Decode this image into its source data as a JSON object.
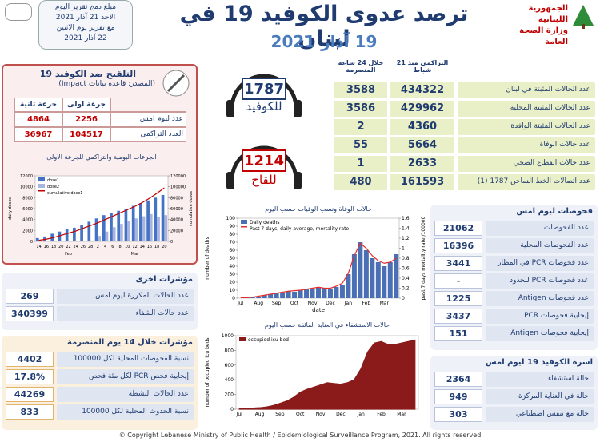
{
  "header": {
    "title": "ترصد عدوى الكوفيد 19 في لبنان",
    "date": "19 آذار 2021",
    "ministry": [
      "الجمهورية اللبنانية",
      "وزارة الصحة العامة"
    ],
    "note": [
      "مبلغ دمج تقرير اليوم",
      "الاحد 21 آذار 2021",
      "مع تقرير يوم الاثنين",
      "22 آذار 2021"
    ]
  },
  "main_table": {
    "headers": [
      "التراكمي منذ 21 شباط",
      "خلال 24 ساعة المنصرمة"
    ],
    "rows": [
      [
        "عدد الحالات المثبتة في لبنان",
        434322,
        3588
      ],
      [
        "عدد الحالات المثبتة المحلية",
        429962,
        3586
      ],
      [
        "عدد الحالات المثبتة الوافدة",
        4360,
        2
      ],
      [
        "عدد حالات الوفاة",
        5664,
        55
      ],
      [
        "عدد حالات القطاع الصحي",
        2633,
        1
      ],
      [
        "عدد اتصالات الخط الساخن 1787 (1)",
        161593,
        480
      ]
    ]
  },
  "hotlines": [
    {
      "number": 1787,
      "label": "للكوفيد"
    },
    {
      "number": 1214,
      "label": "للقاح"
    }
  ],
  "vaccination": {
    "title": "التلقيح ضد الكوفيد 19",
    "source": "(المصدر: قاعدة بيانات Impact)",
    "headers": [
      "جرعة اولى",
      "جرعة ثانية"
    ],
    "rows": [
      [
        "عدد ليوم امس",
        2256,
        4864
      ],
      [
        "العدد التراكمي",
        104517,
        36967
      ]
    ]
  },
  "other": {
    "title": "مؤشرات اخرى",
    "rows": [
      [
        "عدد الحالات المكررة ليوم امس",
        269
      ],
      [
        "عدد حالات الشفاء",
        340399
      ]
    ]
  },
  "indicators": {
    "title": "مؤشرات خلال 14 يوم المنصرمة",
    "rows": [
      [
        "نسبة الفحوصات المحلية لكل 100000",
        4402
      ],
      [
        "إيجابية فحص PCR لكل مئة فحص",
        "17.8%"
      ],
      [
        "عدد الحالات النشطة",
        44269
      ],
      [
        "نسبة الحدوث المحلية لكل 100000",
        833
      ]
    ]
  },
  "tests": {
    "title": "فحوصات ليوم امس",
    "rows": [
      [
        "عدد الفحوصات",
        21062
      ],
      [
        "عدد الفحوصات المحلية",
        16396
      ],
      [
        "عدد فحوصات PCR في المطار",
        3441
      ],
      [
        "عدد فحوصات PCR للحدود",
        "-"
      ],
      [
        "عدد فحوصات Antigen",
        1225
      ],
      [
        "إيجابية فحوصات PCR",
        3437
      ],
      [
        "إيجابية فحوصات Antigen",
        151
      ]
    ]
  },
  "beds": {
    "title": "اسرة الكوفيد 19 ليوم امس",
    "rows": [
      [
        "حالة استشفاء",
        2364
      ],
      [
        "حالة في العناية المركزة",
        949
      ],
      [
        "حالة مع تنفس اصطناعي",
        303
      ]
    ]
  },
  "footer": "© Copyright Lebanese Ministry of Public Health / Epidemiological Surveillance Program, 2021. All rights reserved",
  "chart_data": [
    {
      "type": "bar",
      "title": "الجرعات اليومية والتراكمي للجرعة الاولى",
      "y_label": "daily doses",
      "y2_label": "cumulative doses",
      "legend": "upper left",
      "categories": [
        "14",
        "16",
        "18",
        "20",
        "22",
        "24",
        "26",
        "28",
        "2",
        "4",
        "6",
        "8",
        "10",
        "12",
        "14",
        "16",
        "18",
        "20"
      ],
      "x_groups": [
        "Feb",
        "Mar"
      ],
      "series": [
        {
          "name": "dose1",
          "color": "#4472c4",
          "values": [
            600,
            900,
            1400,
            1800,
            2200,
            2500,
            3000,
            3600,
            4200,
            4800,
            5200,
            5600,
            6000,
            6500,
            7000,
            7500,
            8000,
            8500
          ]
        },
        {
          "name": "dose2",
          "color": "#a9b4e0",
          "values": [
            null,
            null,
            null,
            null,
            null,
            null,
            null,
            null,
            1000,
            1800,
            2600,
            3200,
            3800,
            4200,
            4600,
            5000,
            4400,
            4800
          ]
        },
        {
          "name": "cumulative dose1",
          "color": "#c00000",
          "type": "line",
          "axis": "y2",
          "values": [
            2000,
            4000,
            7000,
            11000,
            15000,
            19000,
            24000,
            29000,
            34000,
            40000,
            46000,
            52000,
            58000,
            64000,
            71000,
            79000,
            88000,
            98000
          ]
        }
      ],
      "ylim": [
        0,
        12000
      ],
      "yticks": [
        0,
        2000,
        4000,
        6000,
        8000,
        10000,
        12000
      ],
      "y2lim": [
        0,
        120000
      ],
      "y2ticks": [
        0,
        20000,
        40000,
        60000,
        80000,
        100000,
        120000
      ]
    },
    {
      "type": "bar",
      "title": "حالات الوفاة ونسب الوفيات حسب اليوم",
      "y_label": "number of deaths",
      "y2_label": "past 7 days mortality rate /100000",
      "x_label": "date",
      "legend": "upper left",
      "categories": [
        "Jul",
        null,
        null,
        "Aug",
        null,
        null,
        "Sep",
        null,
        null,
        "Oct",
        null,
        null,
        "Nov",
        null,
        null,
        "Dec",
        null,
        null,
        "Jan",
        null,
        null,
        "Feb",
        null,
        null,
        "Mar",
        null,
        null
      ],
      "series": [
        {
          "name": "Daily deaths",
          "color": "#4a6fb5",
          "values": [
            0,
            1,
            1,
            2,
            4,
            5,
            6,
            7,
            9,
            8,
            10,
            11,
            12,
            14,
            13,
            12,
            14,
            17,
            30,
            55,
            70,
            60,
            50,
            45,
            40,
            45,
            55
          ]
        },
        {
          "name": "Past 7 days, daily average, mortality rate",
          "color": "#e0302e",
          "type": "line",
          "axis": "y2",
          "values": [
            0.01,
            0.01,
            0.02,
            0.04,
            0.06,
            0.08,
            0.1,
            0.12,
            0.14,
            0.15,
            0.16,
            0.18,
            0.2,
            0.22,
            0.2,
            0.2,
            0.24,
            0.3,
            0.5,
            0.85,
            1.1,
            1.0,
            0.85,
            0.75,
            0.7,
            0.72,
            0.8
          ]
        }
      ],
      "ylim": [
        0,
        100
      ],
      "yticks": [
        0,
        10,
        20,
        30,
        40,
        50,
        60,
        70,
        80,
        90,
        100
      ],
      "y2lim": [
        0,
        1.6
      ],
      "y2ticks": [
        0,
        0.2,
        0.4,
        0.6,
        0.8,
        1,
        1.2,
        1.4,
        1.6
      ]
    },
    {
      "type": "area",
      "title": "حالات الاستشفاء في العناية الفائقة حسب اليوم",
      "y_label": "number of occupied icu beds",
      "legend": "upper left",
      "categories": [
        "Jul",
        null,
        null,
        "Aug",
        null,
        null,
        "Sep",
        null,
        null,
        "Oct",
        null,
        null,
        "Nov",
        null,
        null,
        "Dec",
        null,
        null,
        "Jan",
        null,
        null,
        "Feb",
        null,
        null,
        "Mar",
        null,
        null
      ],
      "series": [
        {
          "name": "occupied icu bed",
          "color": "#8b1a1a",
          "values": [
            10,
            12,
            15,
            20,
            30,
            50,
            80,
            110,
            160,
            230,
            270,
            300,
            330,
            360,
            350,
            340,
            360,
            400,
            550,
            780,
            900,
            920,
            880,
            880,
            900,
            920,
            940
          ]
        }
      ],
      "ylim": [
        0,
        1000
      ],
      "yticks": [
        0,
        200,
        400,
        600,
        800,
        1000
      ]
    }
  ]
}
